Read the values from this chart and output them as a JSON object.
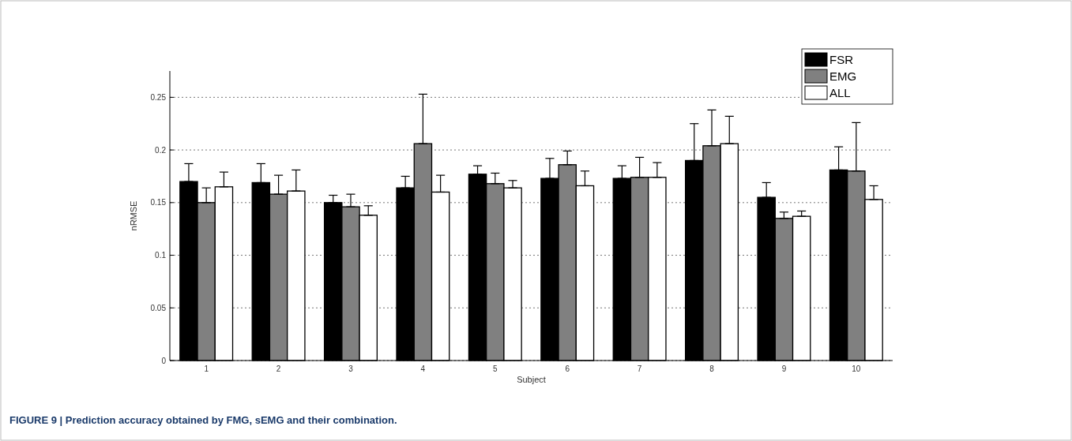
{
  "chart_data": {
    "type": "bar",
    "xlabel": "Subject",
    "ylabel": "nRMSE",
    "categories": [
      "1",
      "2",
      "3",
      "4",
      "5",
      "6",
      "7",
      "8",
      "9",
      "10"
    ],
    "series": [
      {
        "name": "FSR",
        "color": "#000000",
        "values": [
          0.17,
          0.169,
          0.15,
          0.164,
          0.177,
          0.173,
          0.173,
          0.19,
          0.155,
          0.181
        ],
        "errors": [
          [
            0.17,
            0.187
          ],
          [
            0.169,
            0.187
          ],
          [
            0.15,
            0.157
          ],
          [
            0.164,
            0.175
          ],
          [
            0.177,
            0.185
          ],
          [
            0.173,
            0.192
          ],
          [
            0.173,
            0.185
          ],
          [
            0.19,
            0.225
          ],
          [
            0.155,
            0.169
          ],
          [
            0.181,
            0.203
          ]
        ]
      },
      {
        "name": "EMG",
        "color": "#808080",
        "values": [
          0.15,
          0.158,
          0.146,
          0.206,
          0.168,
          0.186,
          0.174,
          0.204,
          0.135,
          0.18
        ],
        "errors": [
          [
            0.15,
            0.164
          ],
          [
            0.158,
            0.176
          ],
          [
            0.146,
            0.158
          ],
          [
            0.206,
            0.253
          ],
          [
            0.168,
            0.178
          ],
          [
            0.186,
            0.199
          ],
          [
            0.174,
            0.193
          ],
          [
            0.204,
            0.238
          ],
          [
            0.135,
            0.141
          ],
          [
            0.18,
            0.226
          ]
        ]
      },
      {
        "name": "ALL",
        "color": "#ffffff",
        "values": [
          0.165,
          0.161,
          0.138,
          0.16,
          0.164,
          0.166,
          0.174,
          0.206,
          0.137,
          0.153
        ],
        "errors": [
          [
            0.165,
            0.179
          ],
          [
            0.161,
            0.181
          ],
          [
            0.138,
            0.147
          ],
          [
            0.16,
            0.176
          ],
          [
            0.164,
            0.171
          ],
          [
            0.166,
            0.18
          ],
          [
            0.174,
            0.188
          ],
          [
            0.206,
            0.232
          ],
          [
            0.137,
            0.142
          ],
          [
            0.153,
            0.166
          ]
        ]
      }
    ],
    "ylim": [
      0,
      0.275
    ],
    "yticks": [
      0,
      0.05,
      0.1,
      0.15,
      0.2,
      0.25
    ],
    "grid": "y",
    "legend": "top right",
    "annotations": [
      "FIGURE 9 | Prediction accuracy obtained by FMG, sEMG and their combination."
    ]
  }
}
